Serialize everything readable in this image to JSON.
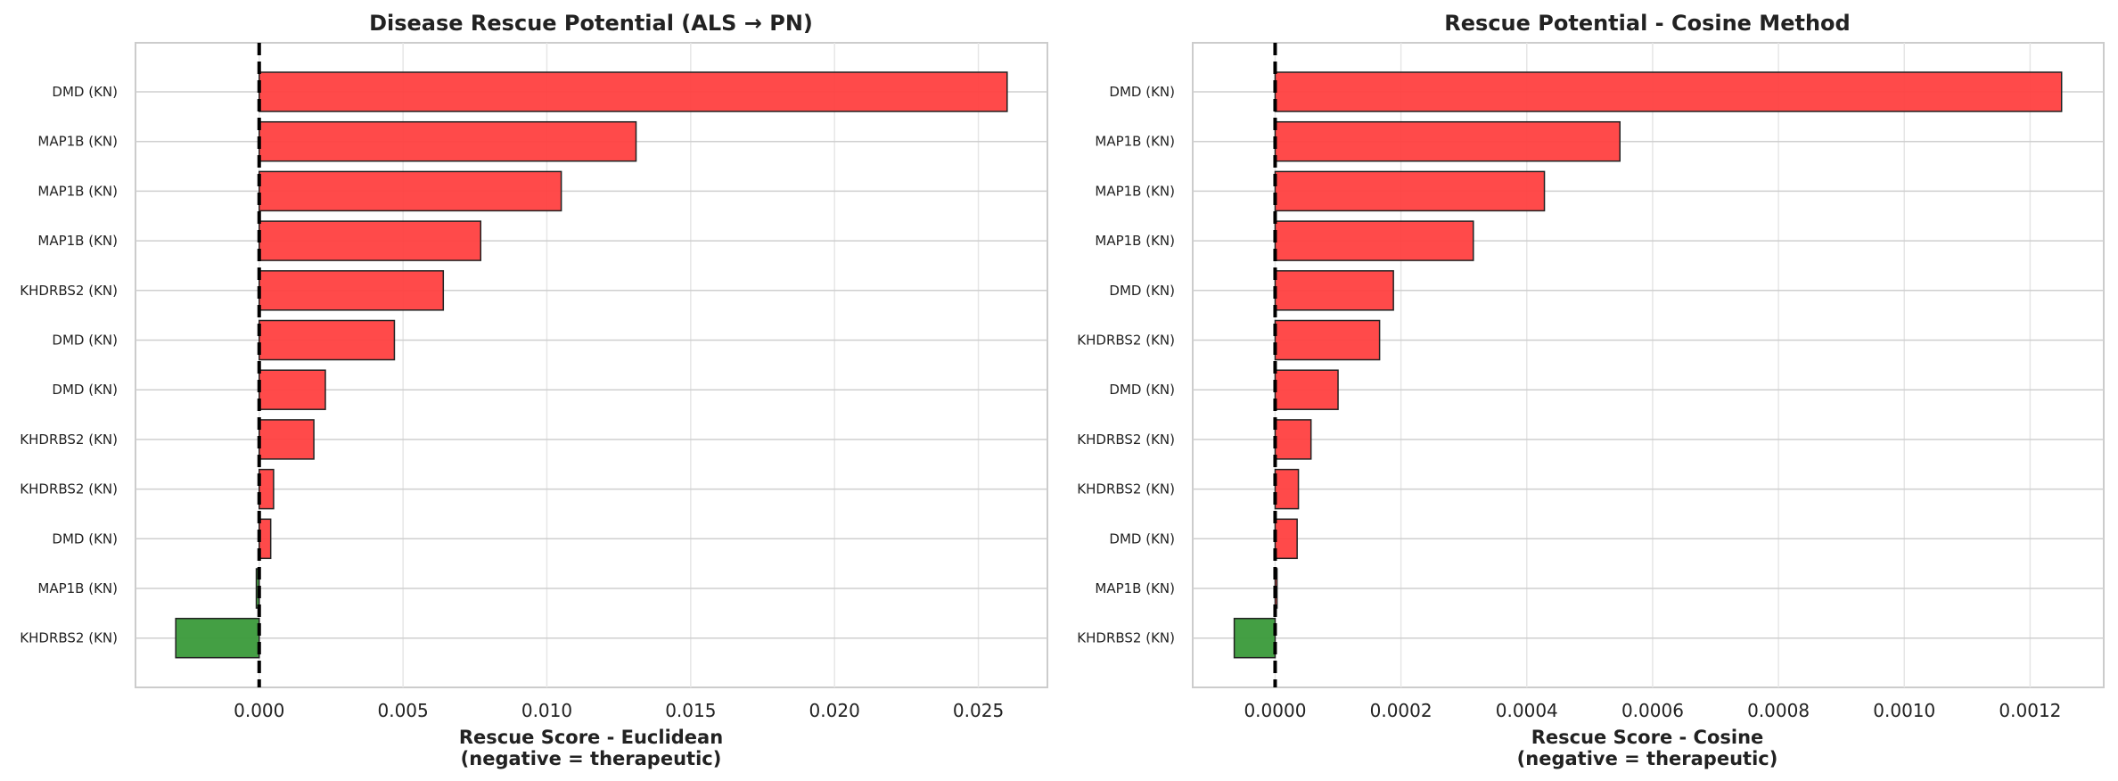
{
  "chart_data": [
    {
      "type": "bar",
      "orientation": "horizontal",
      "title": "Disease Rescue Potential (ALS → PN)",
      "xlabel_line1": "Rescue Score - Euclidean",
      "xlabel_line2": "(negative = therapeutic)",
      "categories": [
        "DMD (KN)",
        "MAP1B (KN)",
        "MAP1B (KN)",
        "MAP1B (KN)",
        "KHDRBS2 (KN)",
        "DMD (KN)",
        "DMD (KN)",
        "KHDRBS2 (KN)",
        "KHDRBS2 (KN)",
        "DMD (KN)",
        "MAP1B (KN)",
        "KHDRBS2 (KN)"
      ],
      "values": [
        0.026,
        0.0131,
        0.0105,
        0.0077,
        0.0064,
        0.0047,
        0.0023,
        0.0019,
        0.0005,
        0.0004,
        -0.0001,
        -0.0029
      ],
      "xlim": [
        -0.0043,
        0.0274
      ],
      "xticks": [
        0.0,
        0.005,
        0.01,
        0.015,
        0.02,
        0.025
      ],
      "xtick_labels": [
        "0.000",
        "0.005",
        "0.010",
        "0.015",
        "0.020",
        "0.025"
      ],
      "positive_color": "#ff4040",
      "negative_color": "#3a9a3a",
      "zero_line": "dashed",
      "grid": true
    },
    {
      "type": "bar",
      "orientation": "horizontal",
      "title": "Rescue Potential - Cosine Method",
      "xlabel_line1": "Rescue Score - Cosine",
      "xlabel_line2": "(negative = therapeutic)",
      "categories": [
        "DMD (KN)",
        "MAP1B (KN)",
        "MAP1B (KN)",
        "MAP1B (KN)",
        "DMD (KN)",
        "KHDRBS2 (KN)",
        "DMD (KN)",
        "KHDRBS2 (KN)",
        "KHDRBS2 (KN)",
        "DMD (KN)",
        "MAP1B (KN)",
        "KHDRBS2 (KN)"
      ],
      "values": [
        0.00125,
        0.000548,
        0.000428,
        0.000315,
        0.000188,
        0.000166,
        0.0001,
        5.7e-05,
        3.7e-05,
        3.5e-05,
        3e-06,
        -6.5e-05
      ],
      "xlim": [
        -0.000131,
        0.001317
      ],
      "xticks": [
        0.0,
        0.0002,
        0.0004,
        0.0006,
        0.0008,
        0.001,
        0.0012
      ],
      "xtick_labels": [
        "0.0000",
        "0.0002",
        "0.0004",
        "0.0006",
        "0.0008",
        "0.0010",
        "0.0012"
      ],
      "positive_color": "#ff4040",
      "negative_color": "#3a9a3a",
      "zero_line": "dashed",
      "grid": true
    }
  ]
}
